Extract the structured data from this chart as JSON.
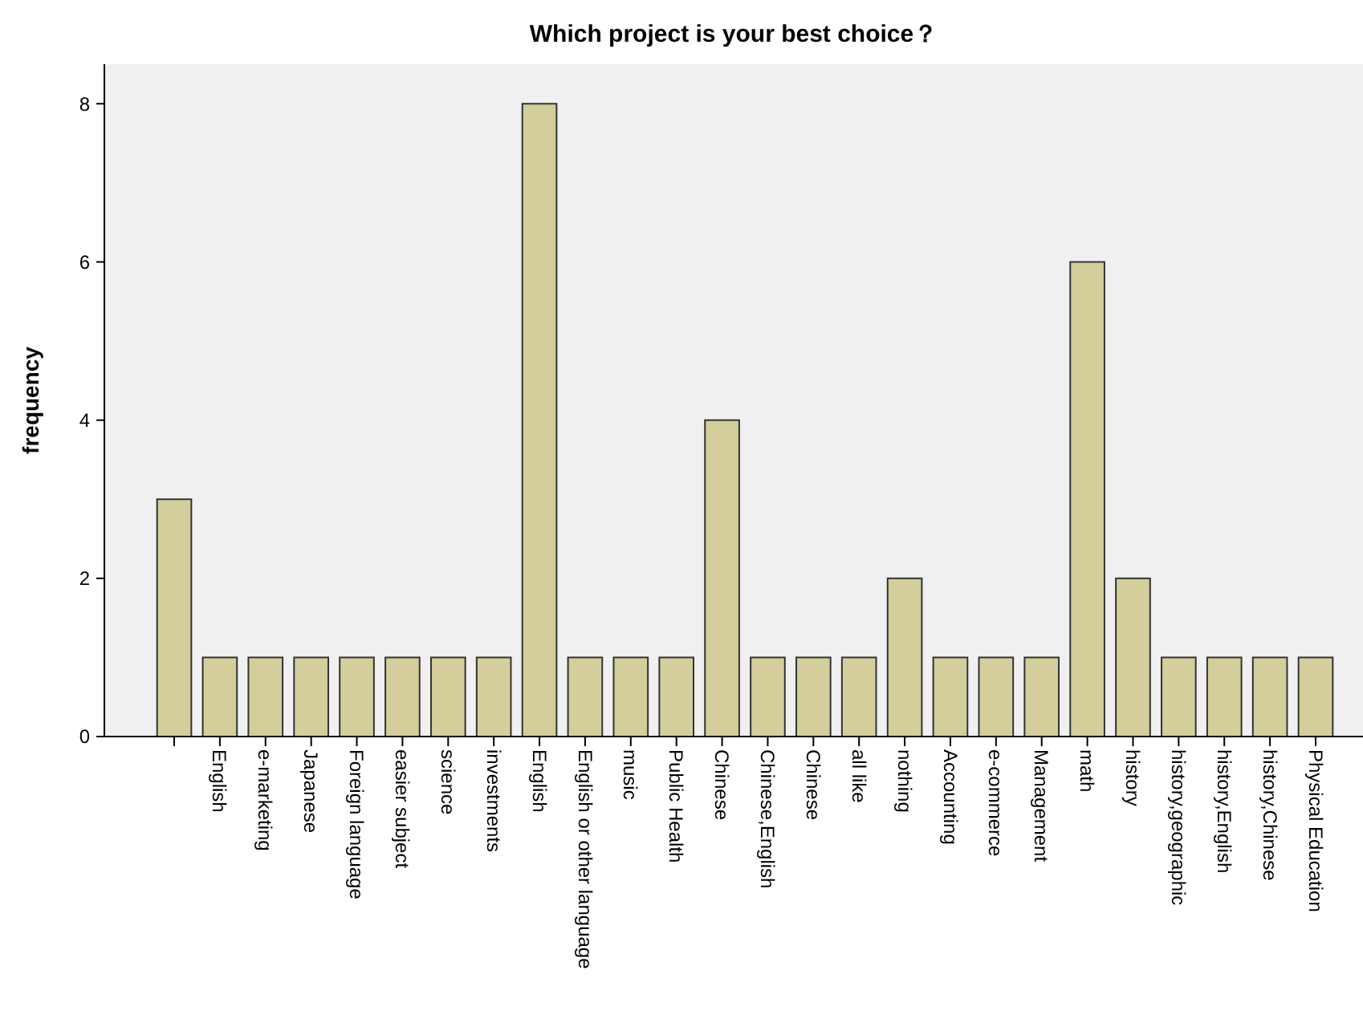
{
  "chart_data": {
    "type": "bar",
    "title": "Which project is your best choice？",
    "ylabel": "frequency",
    "categories": [
      null,
      "English",
      "e-marketing",
      "Japanese",
      "Foreign language",
      "easier subject",
      "science",
      "investments",
      "English",
      "English or other language",
      "music",
      "Public Health",
      "Chinese",
      "Chinese,English",
      "Chinese",
      "all like",
      "nothing",
      "Accounting",
      "e-commerce",
      "Management",
      "math",
      "history",
      "history,geographic",
      "history,English",
      "history,Chinese",
      "Physical Education"
    ],
    "values": [
      3,
      1,
      1,
      1,
      1,
      1,
      1,
      1,
      8,
      1,
      1,
      1,
      4,
      1,
      1,
      1,
      2,
      1,
      1,
      1,
      6,
      2,
      1,
      1,
      1,
      1
    ],
    "color": "#d3ce9b",
    "ylim": [
      0,
      8.5
    ],
    "yticks": [
      0,
      2,
      4,
      6,
      8
    ],
    "grid": false
  }
}
